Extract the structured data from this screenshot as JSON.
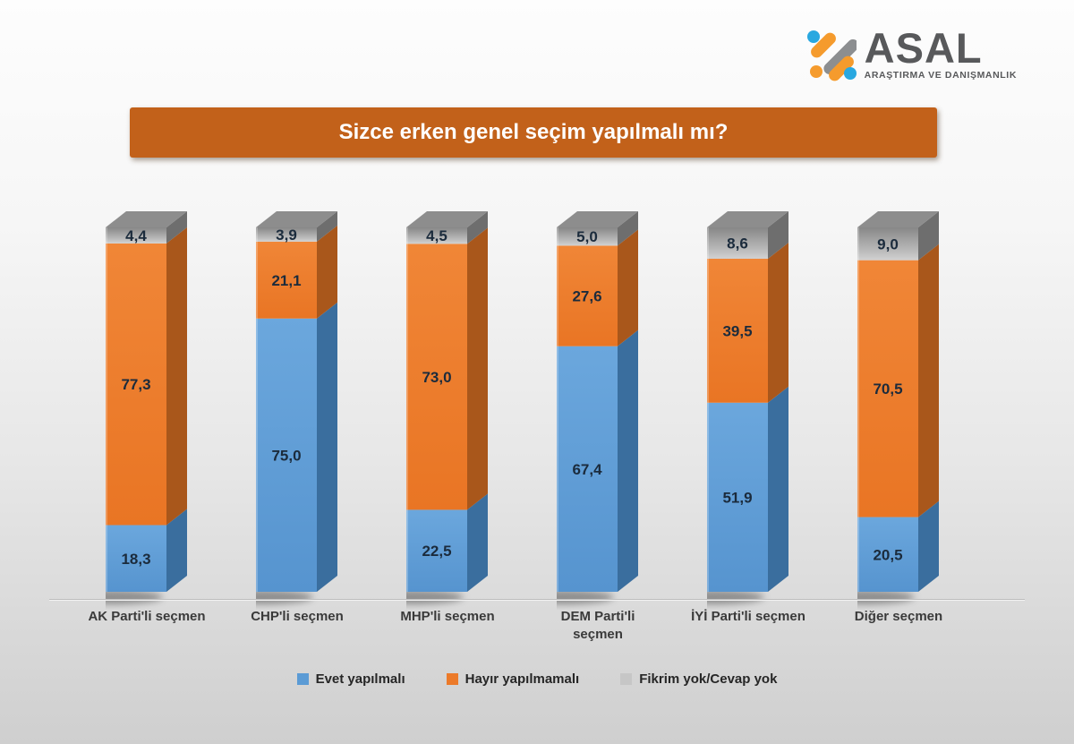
{
  "logo": {
    "name": "ASAL",
    "subtitle": "ARAŞTIRMA VE DANIŞMANLIK",
    "text_color": "#58595b",
    "mark_colors": {
      "blue": "#29a8e0",
      "orange": "#f59b2d",
      "gray": "#8c8e90"
    }
  },
  "title": {
    "text": "Sizce erken genel seçim yapılmalı mı?",
    "background": "#c2611a",
    "color": "#ffffff"
  },
  "chart_data": {
    "type": "bar",
    "stacked": true,
    "unit": "percent",
    "title": "Sizce erken genel seçim yapılmalı mı?",
    "xlabel": "",
    "ylabel": "",
    "ylim": [
      0,
      100
    ],
    "grid": false,
    "legend_position": "bottom",
    "decimal_separator": ",",
    "value_label_color": "#1b2b3c",
    "categories": [
      "AK Parti'li seçmen",
      "CHP'li seçmen",
      "MHP'li seçmen",
      "DEM Parti'li seçmen",
      "İYİ Parti'li seçmen",
      "Diğer seçmen"
    ],
    "categories_display": [
      "AK Parti'li seçmen",
      "CHP'li seçmen",
      "MHP'li seçmen",
      "DEM Parti'li\nseçmen",
      "İYİ Parti'li seçmen",
      "Diğer seçmen"
    ],
    "series": [
      {
        "name": "Evet yapılmalı",
        "color": "#5b9bd5",
        "color_light": "#6ba7dd",
        "side_color": "#3a6e9e",
        "values": [
          18.3,
          75.0,
          22.5,
          67.4,
          51.9,
          20.5
        ]
      },
      {
        "name": "Hayır yapılmamalı",
        "color": "#ec7a29",
        "color_light": "#f08637",
        "side_color": "#a9571b",
        "values": [
          77.3,
          21.1,
          73.0,
          27.6,
          39.5,
          70.5
        ]
      },
      {
        "name": "Fikrim yok/Cevap yok",
        "color": "#c6c6c6",
        "color_light": "#8d8d8d",
        "side_color": "#6e6e6e",
        "top_color": "#8d8d8d",
        "values": [
          4.4,
          3.9,
          4.5,
          5.0,
          8.6,
          9.0
        ]
      }
    ]
  }
}
